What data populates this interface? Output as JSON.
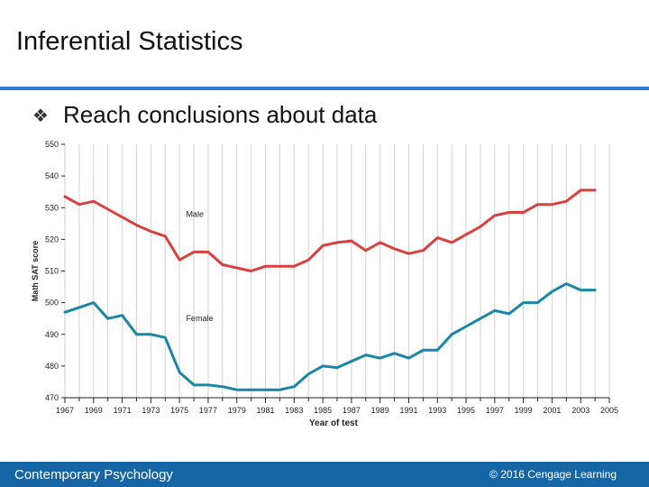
{
  "slide": {
    "title": "Inferential Statistics",
    "bullet_icon": "diamond-bullet",
    "bullet_glyph": "❖",
    "bullet_text": "Reach conclusions about data"
  },
  "footer": {
    "left": "Contemporary Psychology",
    "right": "©  2016 Cengage Learning",
    "color": "#1665a4"
  },
  "chart_data": {
    "type": "line",
    "title": "",
    "xlabel": "Year of test",
    "ylabel": "Math SAT score",
    "ylim": [
      470,
      550
    ],
    "yticks": [
      470,
      480,
      490,
      500,
      510,
      520,
      530,
      540,
      550
    ],
    "xlim": [
      1967,
      2005
    ],
    "xticks": [
      1967,
      1969,
      1971,
      1973,
      1975,
      1977,
      1979,
      1981,
      1983,
      1985,
      1987,
      1989,
      1991,
      1993,
      1995,
      1997,
      1999,
      2001,
      2003,
      2005
    ],
    "grid": "vertical",
    "x": [
      1967,
      1968,
      1969,
      1970,
      1971,
      1972,
      1973,
      1974,
      1975,
      1976,
      1977,
      1978,
      1979,
      1980,
      1981,
      1982,
      1983,
      1984,
      1985,
      1986,
      1987,
      1988,
      1989,
      1990,
      1991,
      1992,
      1993,
      1994,
      1995,
      1996,
      1997,
      1998,
      1999,
      2000,
      2001,
      2002,
      2003,
      2004
    ],
    "series": [
      {
        "name": "Male",
        "color": "#d94040",
        "values": [
          533.5,
          531,
          532,
          529.5,
          527,
          524.5,
          522.5,
          521,
          513.5,
          516,
          516,
          512,
          511,
          510,
          511.5,
          511.5,
          511.5,
          513.5,
          518,
          519,
          519.5,
          516.5,
          519,
          517,
          515.5,
          516.5,
          520.5,
          519,
          521.5,
          524,
          527.5,
          528.5,
          528.5,
          531,
          531,
          532,
          535.5,
          535.5
        ]
      },
      {
        "name": "Female",
        "color": "#1a86a8",
        "values": [
          497,
          498.5,
          500,
          495,
          496,
          490,
          490,
          489,
          478,
          474,
          474,
          473.5,
          472.5,
          472.5,
          472.5,
          472.5,
          473.5,
          477.5,
          480,
          479.5,
          481.5,
          483.5,
          482.5,
          484,
          482.5,
          485,
          485,
          490,
          492.5,
          495,
          497.5,
          496.5,
          500,
          500,
          503.5,
          506,
          504,
          504
        ]
      }
    ]
  }
}
